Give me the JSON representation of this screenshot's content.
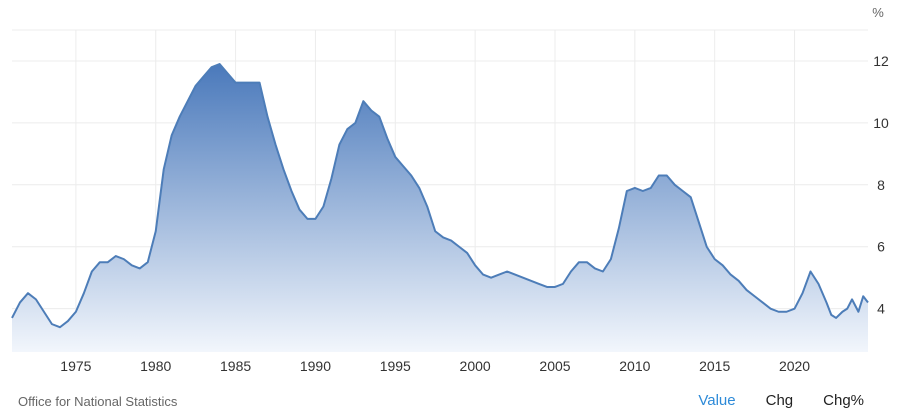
{
  "chart_data": {
    "type": "area",
    "y_unit": "%",
    "ylim": [
      2.6,
      13.0
    ],
    "y_ticks": [
      4,
      6,
      8,
      10,
      12
    ],
    "x_ticks": [
      1975,
      1980,
      1985,
      1990,
      1995,
      2000,
      2005,
      2010,
      2015,
      2020
    ],
    "xlim": [
      1971.0,
      2024.6
    ],
    "grid": true,
    "legend": "none",
    "series": [
      {
        "x": [
          1971.0,
          1971.5,
          1972.0,
          1972.5,
          1973.0,
          1973.5,
          1974.0,
          1974.5,
          1975.0,
          1975.5,
          1976.0,
          1976.5,
          1977.0,
          1977.5,
          1978.0,
          1978.5,
          1979.0,
          1979.5,
          1980.0,
          1980.5,
          1981.0,
          1981.5,
          1982.0,
          1982.5,
          1983.0,
          1983.5,
          1984.0,
          1984.5,
          1985.0,
          1985.5,
          1986.0,
          1986.5,
          1987.0,
          1987.5,
          1988.0,
          1988.5,
          1989.0,
          1989.5,
          1990.0,
          1990.5,
          1991.0,
          1991.5,
          1992.0,
          1992.5,
          1993.0,
          1993.5,
          1994.0,
          1994.5,
          1995.0,
          1995.5,
          1996.0,
          1996.5,
          1997.0,
          1997.5,
          1998.0,
          1998.5,
          1999.0,
          1999.5,
          2000.0,
          2000.5,
          2001.0,
          2001.5,
          2002.0,
          2002.5,
          2003.0,
          2003.5,
          2004.0,
          2004.5,
          2005.0,
          2005.5,
          2006.0,
          2006.5,
          2007.0,
          2007.5,
          2008.0,
          2008.5,
          2009.0,
          2009.5,
          2010.0,
          2010.5,
          2011.0,
          2011.5,
          2012.0,
          2012.5,
          2013.0,
          2013.5,
          2014.0,
          2014.5,
          2015.0,
          2015.5,
          2016.0,
          2016.5,
          2017.0,
          2017.5,
          2018.0,
          2018.5,
          2019.0,
          2019.5,
          2020.0,
          2020.5,
          2021.0,
          2021.5,
          2022.0,
          2022.3,
          2022.6,
          2023.0,
          2023.3,
          2023.6,
          2024.0,
          2024.3,
          2024.6
        ],
        "values": [
          3.7,
          4.2,
          4.5,
          4.3,
          3.9,
          3.5,
          3.4,
          3.6,
          3.9,
          4.5,
          5.2,
          5.5,
          5.5,
          5.7,
          5.6,
          5.4,
          5.3,
          5.5,
          6.5,
          8.5,
          9.6,
          10.2,
          10.7,
          11.2,
          11.5,
          11.8,
          11.9,
          11.6,
          11.3,
          11.3,
          11.3,
          11.3,
          10.2,
          9.3,
          8.5,
          7.8,
          7.2,
          6.9,
          6.9,
          7.3,
          8.2,
          9.3,
          9.8,
          10.0,
          10.7,
          10.4,
          10.2,
          9.5,
          8.9,
          8.6,
          8.3,
          7.9,
          7.3,
          6.5,
          6.3,
          6.2,
          6.0,
          5.8,
          5.4,
          5.1,
          5.0,
          5.1,
          5.2,
          5.1,
          5.0,
          4.9,
          4.8,
          4.7,
          4.7,
          4.8,
          5.2,
          5.5,
          5.5,
          5.3,
          5.2,
          5.6,
          6.6,
          7.8,
          7.9,
          7.8,
          7.9,
          8.3,
          8.3,
          8.0,
          7.8,
          7.6,
          6.8,
          6.0,
          5.6,
          5.4,
          5.1,
          4.9,
          4.6,
          4.4,
          4.2,
          4.0,
          3.9,
          3.9,
          4.0,
          4.5,
          5.2,
          4.8,
          4.2,
          3.8,
          3.7,
          3.9,
          4.0,
          4.3,
          3.9,
          4.4,
          4.2
        ]
      }
    ]
  },
  "footer": {
    "source": "Office for National Statistics",
    "tabs": [
      "Value",
      "Chg",
      "Chg%"
    ],
    "active_tab": "Value"
  },
  "colors": {
    "line": "#4d7db8",
    "fill_top": "#4a79bb",
    "fill_bottom": "#f2f6fc",
    "grid": "#ececec",
    "active_tab": "#2d8ad8"
  }
}
